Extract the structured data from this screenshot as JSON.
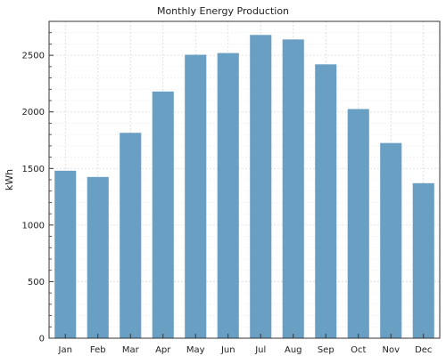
{
  "chart_data": {
    "type": "bar",
    "title": "Monthly Energy Production",
    "xlabel": "",
    "ylabel": "kWh",
    "categories": [
      "Jan",
      "Feb",
      "Mar",
      "Apr",
      "May",
      "Jun",
      "Jul",
      "Aug",
      "Sep",
      "Oct",
      "Nov",
      "Dec"
    ],
    "values": [
      1480,
      1425,
      1815,
      2180,
      2505,
      2520,
      2680,
      2640,
      2420,
      2025,
      1725,
      1370
    ],
    "ylim": [
      0,
      2800
    ],
    "yticks": [
      0,
      500,
      1000,
      1500,
      2000,
      2500
    ],
    "grid": true,
    "bar_color": "#6a9fc4"
  }
}
